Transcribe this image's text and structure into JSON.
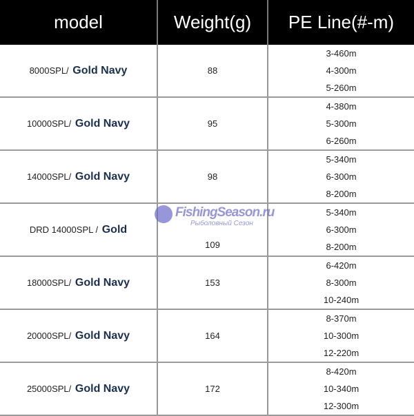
{
  "headers": [
    "model",
    "Weight(g)",
    "PE Line(#-m)"
  ],
  "rows": [
    {
      "model": "8000SPL/",
      "color": "Gold Navy",
      "weight": "88",
      "lines": [
        "3-460m",
        "4-300m",
        "5-260m"
      ]
    },
    {
      "model": "10000SPL/",
      "color": "Gold Navy",
      "weight": "95",
      "lines": [
        "4-380m",
        "5-300m",
        "6-260m"
      ]
    },
    {
      "model": "14000SPL/",
      "color": "Gold Navy",
      "weight": "98",
      "lines": [
        "5-340m",
        "6-300m",
        "8-200m"
      ]
    },
    {
      "model": "DRD 14000SPL /",
      "color": "Gold",
      "weight": "109",
      "lines": [
        "5-340m",
        "6-300m",
        "8-200m"
      ]
    },
    {
      "model": "18000SPL/",
      "color": "Gold Navy",
      "weight": "153",
      "lines": [
        "6-420m",
        "8-300m",
        "10-240m"
      ]
    },
    {
      "model": "20000SPL/",
      "color": "Gold Navy",
      "weight": "164",
      "lines": [
        "8-370m",
        "10-300m",
        "12-220m"
      ]
    },
    {
      "model": "25000SPL/",
      "color": "Gold Navy",
      "weight": "172",
      "lines": [
        "8-420m",
        "10-340m",
        "12-300m"
      ]
    }
  ],
  "watermark": {
    "title": "FishingSeason.ru",
    "subtitle": "Рыболовный Сезон"
  },
  "colors": {
    "header_bg": "#000000",
    "color_name": "#1b2f4f",
    "watermark": "#6a6ac8"
  }
}
